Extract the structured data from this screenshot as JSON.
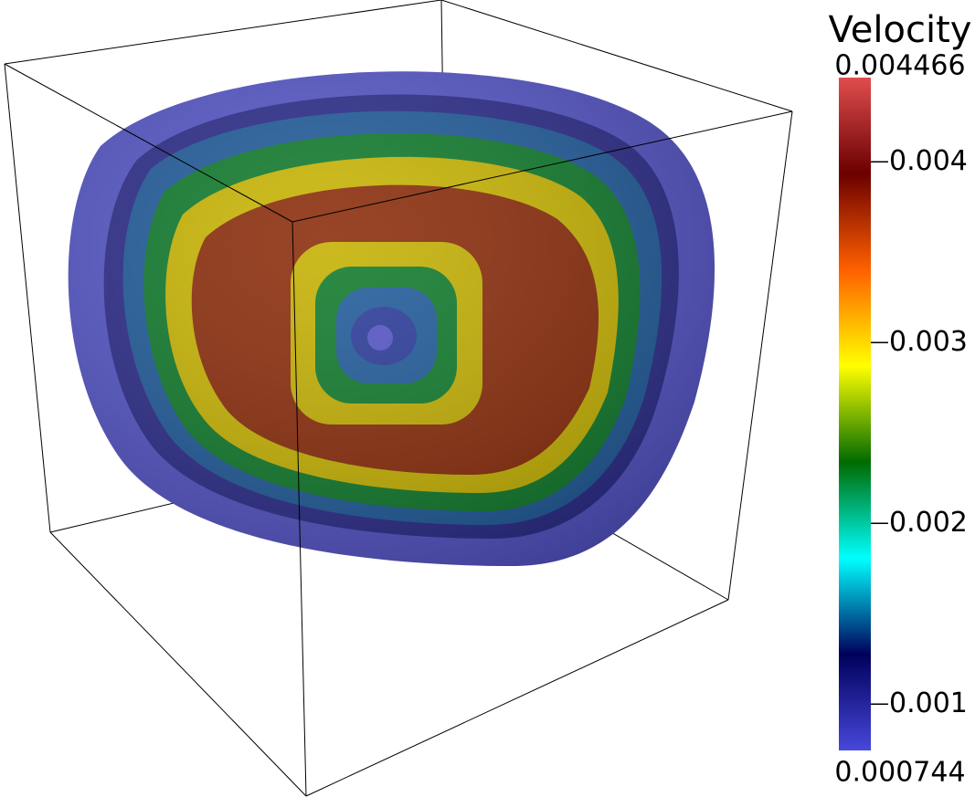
{
  "colorbar": {
    "title": "Velocity",
    "min": 0.000744,
    "max": 0.004466,
    "ticks": [
      0.001,
      0.002,
      0.003,
      0.004
    ],
    "colors": [
      "#4747db",
      "#00005c",
      "#00ffff",
      "#006b00",
      "#ffff00",
      "#ff6000",
      "#6b0000",
      "#e04d4d"
    ]
  }
}
